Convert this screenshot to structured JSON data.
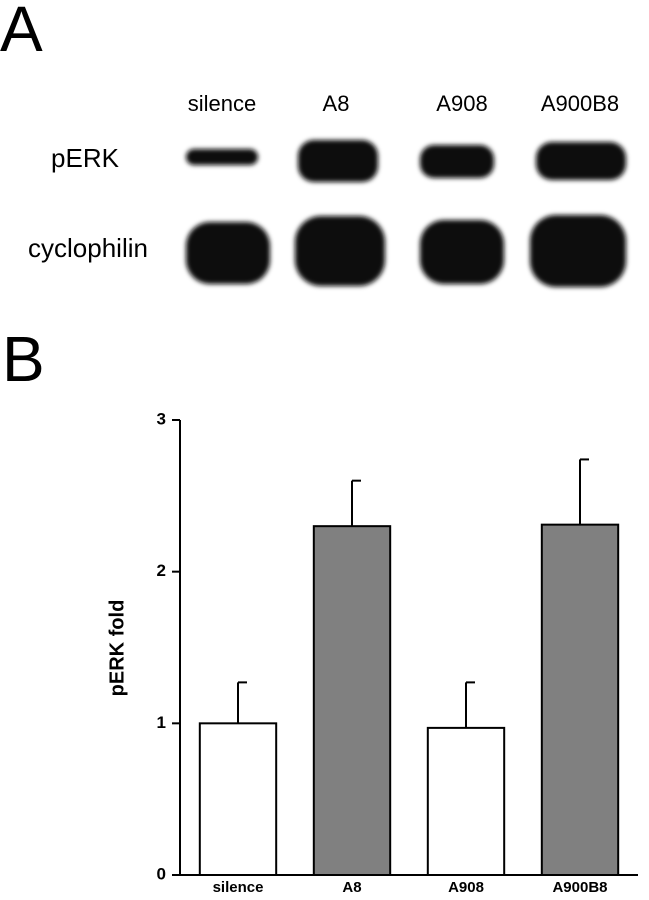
{
  "panel_labels": [
    "A",
    "B"
  ],
  "blot": {
    "lanes": [
      "silence",
      "A8",
      "A908",
      "A900B8"
    ],
    "rows": [
      "pERK",
      "cyclophilin"
    ]
  },
  "chart_data": {
    "type": "bar",
    "ylabel": "pERK fold",
    "categories": [
      "silence",
      "A8",
      "A908",
      "A900B8"
    ],
    "values": [
      1.0,
      2.3,
      0.97,
      2.31
    ],
    "errors": [
      0.27,
      0.3,
      0.3,
      0.43
    ],
    "colors": [
      "#ffffff",
      "#808080",
      "#ffffff",
      "#808080"
    ],
    "ylim": [
      0,
      3
    ],
    "yticks": [
      0,
      1,
      2,
      3
    ],
    "grid": false
  }
}
